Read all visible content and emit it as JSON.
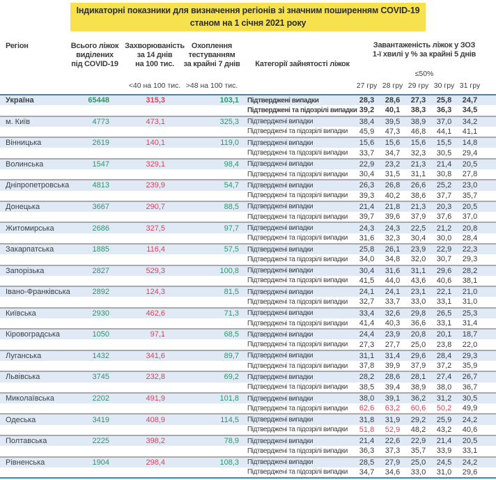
{
  "title": {
    "line1": "Індикаторні показники для визначення регіонів зі значним поширенням COVID-19",
    "line2": "станом на 1 січня 2021 року"
  },
  "header": {
    "region": "Регіон",
    "beds": [
      "Всього ліжок",
      "виділених",
      "під COVID-19"
    ],
    "incidence": [
      "Захворюваність",
      "за 14 днів",
      "на 100 тис."
    ],
    "incidence_threshold": "<40 на 100 тис.",
    "testing": [
      "Охоплення",
      "тестуванням",
      "за крайні 7 днів"
    ],
    "testing_threshold": ">48 на 100 тис.",
    "categories": "Категорії зайнятості ліжок",
    "load": [
      "Завантаженість ліжок у ЗОЗ",
      "1-ї хвилі у % за крайні 5 днів"
    ],
    "load_threshold": "≤50%",
    "dates": [
      "27 гру",
      "28 гру",
      "29 гру",
      "30 гру",
      "31 гру"
    ]
  },
  "row_labels": {
    "confirmed": "Підтверджені випадки",
    "confirmed_suspected": "Підтверджені та підозрілі випадки"
  },
  "rules": {
    "red_above": 50
  },
  "colors": {
    "green": "#2e9668",
    "red": "#d6455d",
    "accent_blue": "#3a85bb",
    "stripe_blue": "#dfeaf6",
    "title_highlight": "#f7e24e",
    "separator_gray": "#a9a9a9",
    "text": "#3f3f3f"
  },
  "rows": [
    {
      "region": "Україна",
      "bold": true,
      "beds": "65448",
      "incidence": "315,3",
      "testing": "103,1",
      "confirmed": [
        "28,3",
        "28,6",
        "27,3",
        "25,8",
        "24,7"
      ],
      "suspected": [
        "39,2",
        "40,1",
        "38,3",
        "36,3",
        "34,5"
      ]
    },
    {
      "region": "м. Київ",
      "bold": false,
      "beds": "4773",
      "incidence": "473,1",
      "testing": "325,3",
      "confirmed": [
        "38,4",
        "39,5",
        "38,9",
        "37,0",
        "34,2"
      ],
      "suspected": [
        "45,9",
        "47,3",
        "46,8",
        "44,1",
        "41,1"
      ]
    },
    {
      "region": "Вінницька",
      "bold": false,
      "beds": "2619",
      "incidence": "140,1",
      "testing": "119,0",
      "confirmed": [
        "15,6",
        "15,6",
        "15,6",
        "15,5",
        "14,8"
      ],
      "suspected": [
        "33,7",
        "34,7",
        "32,3",
        "30,5",
        "29,4"
      ]
    },
    {
      "region": "Волинська",
      "bold": false,
      "beds": "1547",
      "incidence": "329,1",
      "testing": "98,4",
      "confirmed": [
        "22,9",
        "23,2",
        "21,3",
        "21,4",
        "20,5"
      ],
      "suspected": [
        "30,4",
        "31,5",
        "31,1",
        "30,8",
        "27,8"
      ]
    },
    {
      "region": "Дніпропетровська",
      "bold": false,
      "beds": "4813",
      "incidence": "239,9",
      "testing": "54,7",
      "confirmed": [
        "26,3",
        "26,8",
        "26,6",
        "25,2",
        "23,0"
      ],
      "suspected": [
        "39,3",
        "40,2",
        "38,6",
        "37,7",
        "35,7"
      ]
    },
    {
      "region": "Донецька",
      "bold": false,
      "beds": "3667",
      "incidence": "290,7",
      "testing": "88,5",
      "confirmed": [
        "21,4",
        "21,8",
        "21,3",
        "20,3",
        "20,5"
      ],
      "suspected": [
        "39,7",
        "39,6",
        "37,9",
        "37,6",
        "37,0"
      ]
    },
    {
      "region": "Житомирська",
      "bold": false,
      "beds": "2686",
      "incidence": "327,5",
      "testing": "97,7",
      "confirmed": [
        "24,3",
        "24,3",
        "22,5",
        "21,2",
        "20,8"
      ],
      "suspected": [
        "31,6",
        "32,3",
        "30,4",
        "30,0",
        "28,4"
      ]
    },
    {
      "region": "Закарпатська",
      "bold": false,
      "beds": "1885",
      "incidence": "116,4",
      "testing": "57,5",
      "confirmed": [
        "25,8",
        "26,1",
        "23,9",
        "22,9",
        "22,3"
      ],
      "suspected": [
        "34,0",
        "34,8",
        "32,0",
        "30,7",
        "29,3"
      ]
    },
    {
      "region": "Запорізька",
      "bold": false,
      "beds": "2827",
      "incidence": "529,3",
      "testing": "100,8",
      "confirmed": [
        "30,4",
        "31,6",
        "31,1",
        "29,6",
        "28,2"
      ],
      "suspected": [
        "41,5",
        "44,0",
        "43,6",
        "40,6",
        "38,1"
      ]
    },
    {
      "region": "Івано-Франківська",
      "bold": false,
      "beds": "2892",
      "incidence": "124,3",
      "testing": "81,5",
      "confirmed": [
        "24,1",
        "24,1",
        "23,1",
        "22,1",
        "21,0"
      ],
      "suspected": [
        "32,7",
        "33,7",
        "33,0",
        "33,1",
        "31,0"
      ]
    },
    {
      "region": "Київська",
      "bold": false,
      "beds": "2930",
      "incidence": "462,6",
      "testing": "71,3",
      "confirmed": [
        "33,4",
        "32,6",
        "29,8",
        "26,5",
        "25,3"
      ],
      "suspected": [
        "41,4",
        "40,3",
        "36,6",
        "33,1",
        "31,4"
      ]
    },
    {
      "region": "Кіровоградська",
      "bold": false,
      "beds": "1050",
      "incidence": "97,1",
      "testing": "68,5",
      "confirmed": [
        "24,4",
        "23,9",
        "20,8",
        "20,1",
        "18,7"
      ],
      "suspected": [
        "27,3",
        "27,7",
        "25,0",
        "23,8",
        "22,0"
      ]
    },
    {
      "region": "Луганська",
      "bold": false,
      "beds": "1432",
      "incidence": "341,6",
      "testing": "89,7",
      "confirmed": [
        "31,1",
        "31,4",
        "29,6",
        "28,4",
        "29,3"
      ],
      "suspected": [
        "37,8",
        "39,9",
        "37,9",
        "37,2",
        "35,9"
      ]
    },
    {
      "region": "Львівська",
      "bold": false,
      "beds": "3745",
      "incidence": "232,8",
      "testing": "69,2",
      "confirmed": [
        "28,2",
        "28,6",
        "28,1",
        "27,4",
        "26,7"
      ],
      "suspected": [
        "38,5",
        "39,4",
        "38,9",
        "38,0",
        "36,7"
      ]
    },
    {
      "region": "Миколаївська",
      "bold": false,
      "beds": "2202",
      "incidence": "491,9",
      "testing": "101,8",
      "confirmed": [
        "38,0",
        "39,1",
        "36,2",
        "31,2",
        "30,5"
      ],
      "suspected": [
        "62,6",
        "63,2",
        "60,6",
        "50,2",
        "49,9"
      ]
    },
    {
      "region": "Одеська",
      "bold": false,
      "beds": "3419",
      "incidence": "408,9",
      "testing": "114,5",
      "confirmed": [
        "31,8",
        "31,9",
        "29,2",
        "25,9",
        "24,2"
      ],
      "suspected": [
        "51,8",
        "52,9",
        "48,2",
        "43,2",
        "40,6"
      ]
    },
    {
      "region": "Полтавська",
      "bold": false,
      "beds": "2225",
      "incidence": "398,2",
      "testing": "78,9",
      "confirmed": [
        "21,4",
        "22,6",
        "22,9",
        "21,4",
        "20,5"
      ],
      "suspected": [
        "36,3",
        "37,3",
        "35,7",
        "33,9",
        "33,1"
      ]
    },
    {
      "region": "Рівненська",
      "bold": false,
      "beds": "1904",
      "incidence": "298,4",
      "testing": "108,3",
      "confirmed": [
        "28,5",
        "27,9",
        "25,0",
        "24,5",
        "24,2"
      ],
      "suspected": [
        "34,7",
        "34,6",
        "33,0",
        "31,0",
        "29,6"
      ]
    }
  ]
}
